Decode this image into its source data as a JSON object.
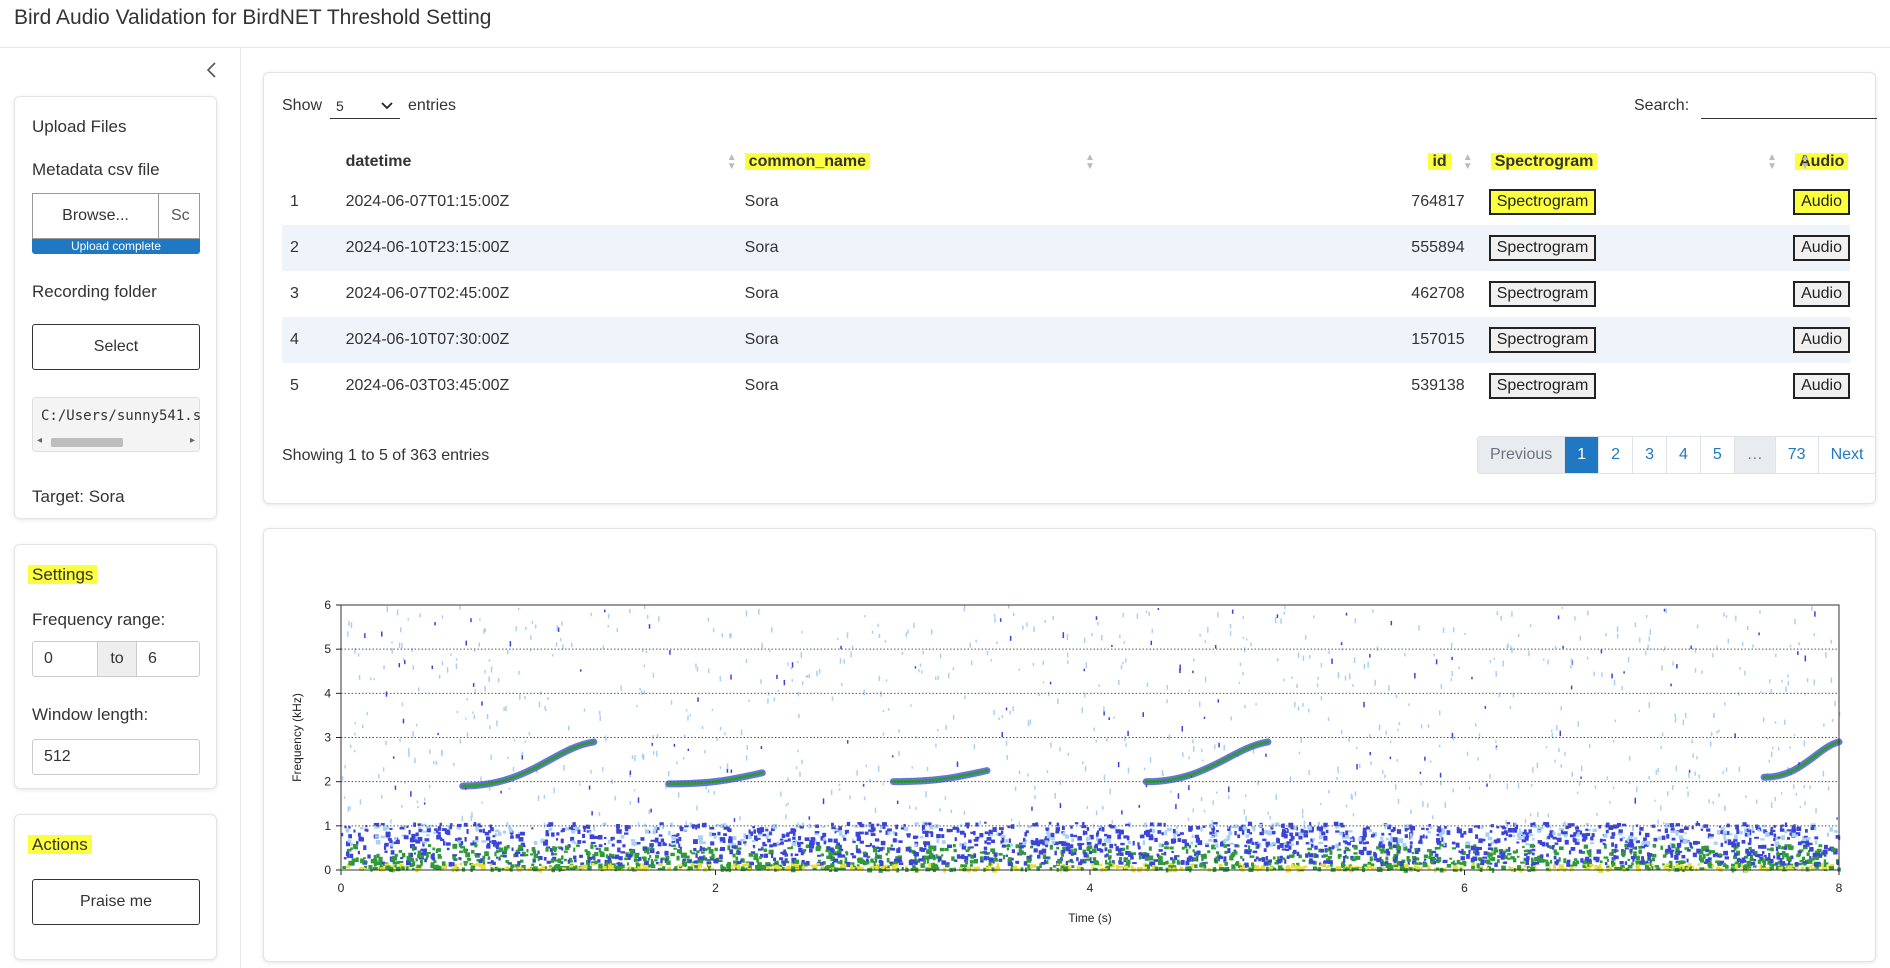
{
  "app": {
    "title": "Bird Audio Validation for BirdNET Threshold Setting"
  },
  "sidebar": {
    "collapse_icon": "chevron-left",
    "upload": {
      "title": "Upload Files",
      "metadata_label": "Metadata csv file",
      "browse_label": "Browse...",
      "file_name": "Sc",
      "progress_text": "Upload complete",
      "folder_label": "Recording folder",
      "select_label": "Select",
      "folder_path": "C:/Users/sunny541.s",
      "target_text": "Target: Sora"
    },
    "settings": {
      "title": "Settings",
      "freq_label": "Frequency range:",
      "freq_min": "0",
      "freq_to": "to",
      "freq_max": "6",
      "window_label": "Window length:",
      "window_value": "512"
    },
    "actions": {
      "title": "Actions",
      "praise_label": "Praise me"
    }
  },
  "table": {
    "show_label": "Show",
    "length_value": "5",
    "entries_label": "entries",
    "search_label": "Search:",
    "search_value": "",
    "columns": [
      "",
      "datetime",
      "common_name",
      "id",
      "Spectrogram",
      "Audio"
    ],
    "rows": [
      {
        "n": "1",
        "datetime": "2024-06-07T01:15:00Z",
        "common_name": "Sora",
        "id": "764817",
        "spec": "Spectrogram",
        "audio": "Audio"
      },
      {
        "n": "2",
        "datetime": "2024-06-10T23:15:00Z",
        "common_name": "Sora",
        "id": "555894",
        "spec": "Spectrogram",
        "audio": "Audio"
      },
      {
        "n": "3",
        "datetime": "2024-06-07T02:45:00Z",
        "common_name": "Sora",
        "id": "462708",
        "spec": "Spectrogram",
        "audio": "Audio"
      },
      {
        "n": "4",
        "datetime": "2024-06-10T07:30:00Z",
        "common_name": "Sora",
        "id": "157015",
        "spec": "Spectrogram",
        "audio": "Audio"
      },
      {
        "n": "5",
        "datetime": "2024-06-03T03:45:00Z",
        "common_name": "Sora",
        "id": "539138",
        "spec": "Spectrogram",
        "audio": "Audio"
      }
    ],
    "info": "Showing 1 to 5 of 363 entries",
    "pagination": [
      "Previous",
      "1",
      "2",
      "3",
      "4",
      "5",
      "…",
      "73",
      "Next"
    ]
  },
  "colors": {
    "accent": "#1f78c1",
    "highlight": "#fbff3d",
    "stripe": "#eef4f9"
  },
  "chart_data": {
    "type": "heatmap",
    "title": "",
    "xlabel": "Time (s)",
    "ylabel": "Frequency (kHz)",
    "xlim": [
      0,
      8
    ],
    "ylim": [
      0,
      6
    ],
    "x_ticks": [
      0,
      2,
      4,
      6,
      8
    ],
    "y_ticks": [
      0,
      1,
      2,
      3,
      4,
      5,
      6
    ],
    "grid": "horizontal dotted",
    "colormap": [
      "#ffffff",
      "#a9d1f5",
      "#3a44d6",
      "#2f9a3a",
      "#e9e033"
    ],
    "calls": [
      {
        "t_start": 0.65,
        "t_end": 1.35,
        "f_start": 1.9,
        "f_end": 2.9
      },
      {
        "t_start": 1.75,
        "t_end": 2.25,
        "f_start": 1.95,
        "f_end": 2.2
      },
      {
        "t_start": 2.95,
        "t_end": 3.45,
        "f_start": 2.0,
        "f_end": 2.25
      },
      {
        "t_start": 4.3,
        "t_end": 4.95,
        "f_start": 2.0,
        "f_end": 2.9
      },
      {
        "t_start": 7.6,
        "t_end": 8.0,
        "f_start": 2.1,
        "f_end": 2.9
      }
    ]
  }
}
